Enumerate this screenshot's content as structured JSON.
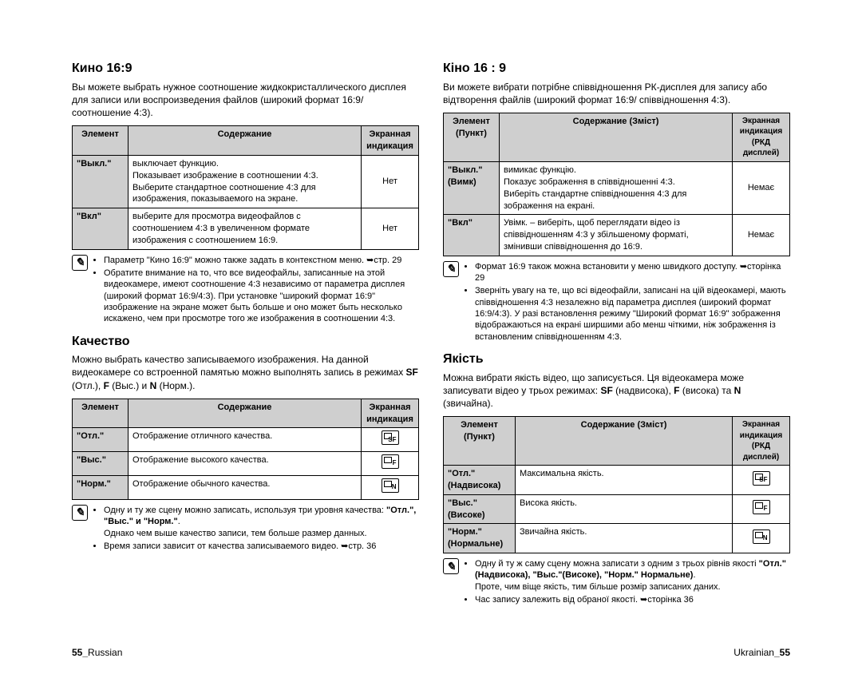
{
  "left": {
    "sec1": {
      "title": "Кино 16:9",
      "intro": "Вы можете выбрать нужное соотношение жидкокристаллического дисплея для записи или воспроизведения файлов (широкий формат 16:9/соотношение 4:3).",
      "headers": [
        "Элемент",
        "Содержание",
        "Экранная индикация"
      ],
      "rows": [
        {
          "label": "\"Выкл.\"",
          "content": "выключает функцию.\nПоказывает изображение в соотношении 4:3.\nВыберите стандартное соотношение 4:3 для изображения, показываемого на экране.",
          "ind": "Нет"
        },
        {
          "label": "\"Вкл\"",
          "content": "выберите для просмотра видеофайлов с соотношением 4:3 в увеличенном формате изображения с соотношением 16:9.",
          "ind": "Нет"
        }
      ],
      "note1": "Параметр \"Кино 16:9\" можно также задать в контекстном меню. ➥стр. 29",
      "note2": "Обратите внимание на то, что все видеофайлы, записанные на этой видеокамере, имеют соотношение 4:3 независимо от параметра дисплея (широкий формат 16:9/4:3). При установке \"широкий формат 16:9\" изображение на экране может быть больше и оно может быть несколько искажено, чем при просмотре того же изображения в соотношении 4:3."
    },
    "sec2": {
      "title": "Качество",
      "intro": "Можно выбрать качество записываемого изображения. На данной видеокамере со встроенной памятью можно выполнять запись в режимах SF (Отл.), F (Выс.) и N (Норм.).",
      "headers": [
        "Элемент",
        "Содержание",
        "Экранная индикация"
      ],
      "rows": [
        {
          "label": "\"Отл.\"",
          "content": "Отображение отличного качества.",
          "icon": "SF"
        },
        {
          "label": "\"Выс.\"",
          "content": "Отображение высокого качества.",
          "icon": "F"
        },
        {
          "label": "\"Норм.\"",
          "content": "Отображение обычного качества.",
          "icon": "N"
        }
      ],
      "note1": "Одну и ту же сцену можно записать, используя три уровня качества: \"Отл.\", \"Выс.\" и \"Норм.\".",
      "note1b": "Однако чем выше качество записи, тем больше размер данных.",
      "note2": "Время записи зависит от качества записываемого видео. ➥стр. 36"
    },
    "footer": "55_Russian"
  },
  "right": {
    "sec1": {
      "title": "Кіно 16 : 9",
      "intro": "Ви можете вибрати потрібне співвідношення РК-дисплея для запису або відтворення файлів (широкий формат 16:9/ співвідношення 4:3).",
      "headers": [
        "Элемент (Пункт)",
        "Содержание (Зміст)",
        "Экранная индикация (РКД дисплей)"
      ],
      "rows": [
        {
          "label": "\"Выкл.\" (Вимк)",
          "content": "вимикає функцію.\nПоказує зображення в співвідношенні 4:3.\nВиберіть стандартне співвідношення 4:3 для зображення на екрані.",
          "ind": "Немає"
        },
        {
          "label": "\"Вкл\"",
          "content": "Увімк. – виберіть, щоб переглядати відео із співвідношенням 4:3 у збільшеному форматі, змінивши співвідношення до 16:9.",
          "ind": "Немає"
        }
      ],
      "note1": "Формат 16:9 також можна встановити у меню швидкого доступу. ➥сторінка 29",
      "note2": "Зверніть увагу на те, що всі відеофайли, записані на цій відеокамері, мають співвідношення 4:3 незалежно від параметра дисплея (широкий формат 16:9/4:3). У разі встановлення режиму \"Широкий формат 16:9\" зображення відображаються на екрані ширшими або менш чіткими, ніж зображення із встановленим співвідношенням 4:3."
    },
    "sec2": {
      "title": "Якість",
      "intro": "Можна вибрати якість відео, що записується. Ця відеокамера може записувати відео у трьох режимах: SF (надвисока), F (висока) та N (звичайна).",
      "headers": [
        "Элемент (Пункт)",
        "Содержание (Зміст)",
        "Экранная индикация (РКД дисплей)"
      ],
      "rows": [
        {
          "label": "\"Отл.\" (Надвисока)",
          "content": "Максимальна якість.",
          "icon": "SF"
        },
        {
          "label": "\"Выс.\" (Високе)",
          "content": "Висока якість.",
          "icon": "F"
        },
        {
          "label": "\"Норм.\" (Нормальне)",
          "content": "Звичайна якість.",
          "icon": "N"
        }
      ],
      "note1": "Одну й ту ж саму сцену можна записати з одним з трьох рівнів якості \"Отл.\"(Надвисока), \"Выс.\"(Високе), \"Норм.\" Нормальне).",
      "note1b": "Проте, чим віще якість, тим більше розмір записаних даних.",
      "note2": "Час запису залежить від обраної якості. ➥сторінка 36"
    },
    "footer": "Ukrainian_55"
  }
}
